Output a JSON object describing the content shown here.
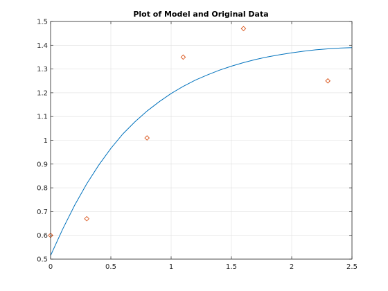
{
  "chart_data": {
    "type": "line",
    "title": "Plot of Model and Original Data",
    "xlabel": "",
    "ylabel": "",
    "xlim": [
      0,
      2.5
    ],
    "ylim": [
      0.5,
      1.5
    ],
    "xticks": [
      0,
      0.5,
      1,
      1.5,
      2,
      2.5
    ],
    "xtick_labels": [
      "0",
      "0.5",
      "1",
      "1.5",
      "2",
      "2.5"
    ],
    "yticks": [
      0.5,
      0.6,
      0.7,
      0.8,
      0.9,
      1,
      1.1,
      1.2,
      1.3,
      1.4,
      1.5
    ],
    "ytick_labels": [
      "0.5",
      "0.6",
      "0.7",
      "0.8",
      "0.9",
      "1",
      "1.1",
      "1.2",
      "1.3",
      "1.4",
      "1.5"
    ],
    "grid": true,
    "series": [
      {
        "style": "line",
        "color": "#0072BD",
        "x": [
          0,
          0.1,
          0.2,
          0.3,
          0.4,
          0.5,
          0.6,
          0.7,
          0.8,
          0.9,
          1.0,
          1.1,
          1.2,
          1.3,
          1.4,
          1.5,
          1.6,
          1.7,
          1.8,
          1.9,
          2.0,
          2.1,
          2.2,
          2.3,
          2.4,
          2.5
        ],
        "y": [
          0.515,
          0.626,
          0.727,
          0.817,
          0.896,
          0.966,
          1.027,
          1.078,
          1.123,
          1.162,
          1.197,
          1.227,
          1.253,
          1.275,
          1.295,
          1.312,
          1.327,
          1.34,
          1.351,
          1.36,
          1.368,
          1.375,
          1.381,
          1.385,
          1.388,
          1.39
        ]
      },
      {
        "style": "markers",
        "marker": "diamond",
        "color": "#D95319",
        "x": [
          0,
          0.3,
          0.8,
          1.1,
          1.6,
          2.3
        ],
        "y": [
          0.6,
          0.67,
          1.01,
          1.35,
          1.47,
          1.25
        ]
      }
    ]
  }
}
